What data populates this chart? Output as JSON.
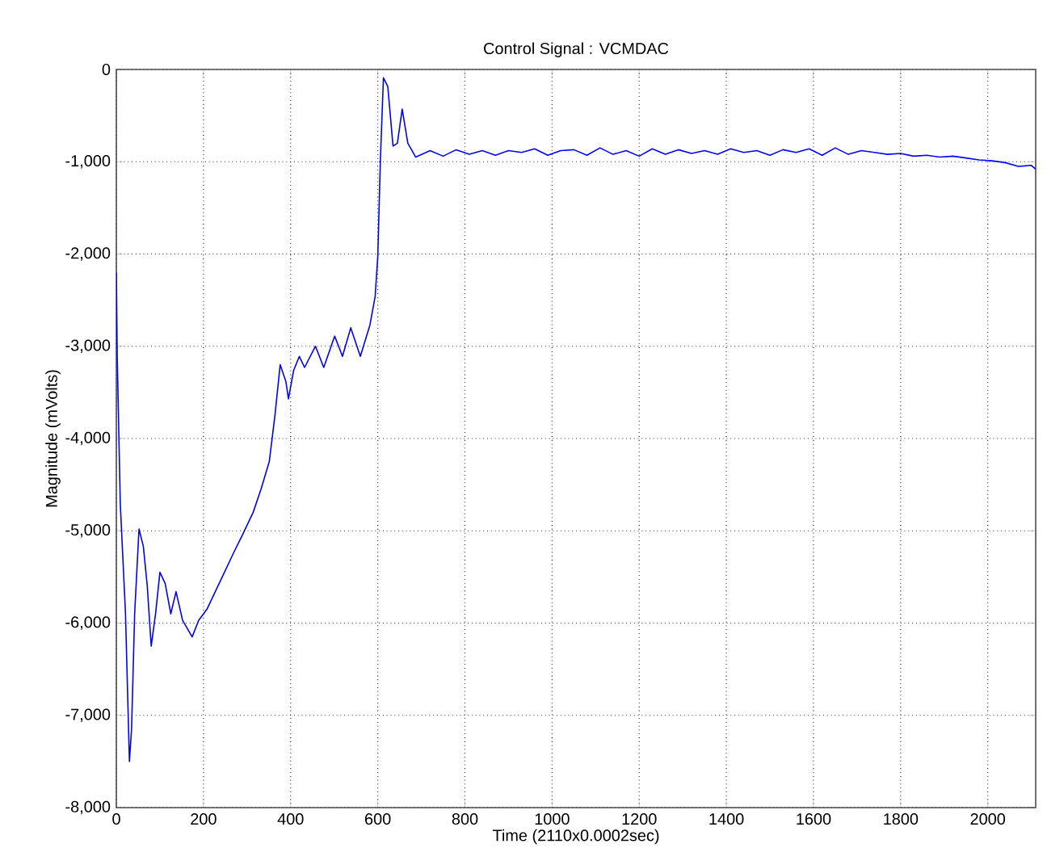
{
  "chart_data": {
    "type": "line",
    "title": "Control Signal : VCMDAC",
    "xlabel": "Time (2110x0.0002sec)",
    "ylabel": "Magnitude (mVolts)",
    "xlim": [
      0,
      2110
    ],
    "ylim": [
      -8000,
      0
    ],
    "xticks": [
      0,
      200,
      400,
      600,
      800,
      1000,
      1200,
      1400,
      1600,
      1800,
      2000
    ],
    "yticks": [
      {
        "value": -8000,
        "label": "-8,000"
      },
      {
        "value": -7000,
        "label": "-7,000"
      },
      {
        "value": -6000,
        "label": "-6,000"
      },
      {
        "value": -5000,
        "label": "-5,000"
      },
      {
        "value": -4000,
        "label": "-4,000"
      },
      {
        "value": -3000,
        "label": "-3,000"
      },
      {
        "value": -2000,
        "label": "-2,000"
      },
      {
        "value": -1000,
        "label": "-1,000"
      },
      {
        "value": 0,
        "label": "0"
      }
    ],
    "grid": true,
    "marker": "none",
    "line_style": "solid",
    "series": [
      {
        "color": "#0000ff",
        "x": [
          0,
          2,
          9,
          21,
          30,
          35,
          42,
          52,
          62,
          71,
          80,
          90,
          100,
          112,
          125,
          137,
          152,
          174,
          189,
          208,
          227,
          245,
          270,
          289,
          314,
          332,
          351,
          364,
          376,
          389,
          395,
          407,
          420,
          432,
          457,
          476,
          501,
          519,
          538,
          560,
          582,
          594,
          600,
          606,
          613,
          623,
          635,
          645,
          656,
          669,
          687,
          720,
          750,
          780,
          810,
          840,
          870,
          900,
          930,
          960,
          990,
          1020,
          1050,
          1080,
          1110,
          1140,
          1170,
          1200,
          1230,
          1260,
          1290,
          1320,
          1350,
          1380,
          1410,
          1440,
          1470,
          1500,
          1530,
          1560,
          1590,
          1620,
          1650,
          1680,
          1710,
          1740,
          1770,
          1800,
          1830,
          1860,
          1890,
          1920,
          1950,
          1980,
          2010,
          2040,
          2070,
          2100,
          2110
        ],
        "values": [
          -2200,
          -3100,
          -4700,
          -5900,
          -7500,
          -7140,
          -5900,
          -4980,
          -5170,
          -5600,
          -6250,
          -5900,
          -5450,
          -5570,
          -5900,
          -5660,
          -5970,
          -6150,
          -5970,
          -5850,
          -5660,
          -5480,
          -5230,
          -5050,
          -4800,
          -4550,
          -4250,
          -3750,
          -3200,
          -3380,
          -3570,
          -3260,
          -3110,
          -3230,
          -3000,
          -3230,
          -2890,
          -3110,
          -2800,
          -3110,
          -2770,
          -2460,
          -2030,
          -985,
          -90,
          -185,
          -830,
          -800,
          -430,
          -800,
          -950,
          -880,
          -940,
          -870,
          -920,
          -880,
          -930,
          -880,
          -900,
          -860,
          -930,
          -880,
          -870,
          -930,
          -850,
          -920,
          -880,
          -940,
          -860,
          -920,
          -870,
          -910,
          -880,
          -920,
          -860,
          -900,
          -880,
          -930,
          -870,
          -900,
          -860,
          -930,
          -850,
          -920,
          -880,
          -900,
          -920,
          -910,
          -940,
          -930,
          -950,
          -940,
          -960,
          -980,
          -990,
          -1010,
          -1050,
          -1040,
          -1080
        ]
      }
    ]
  }
}
